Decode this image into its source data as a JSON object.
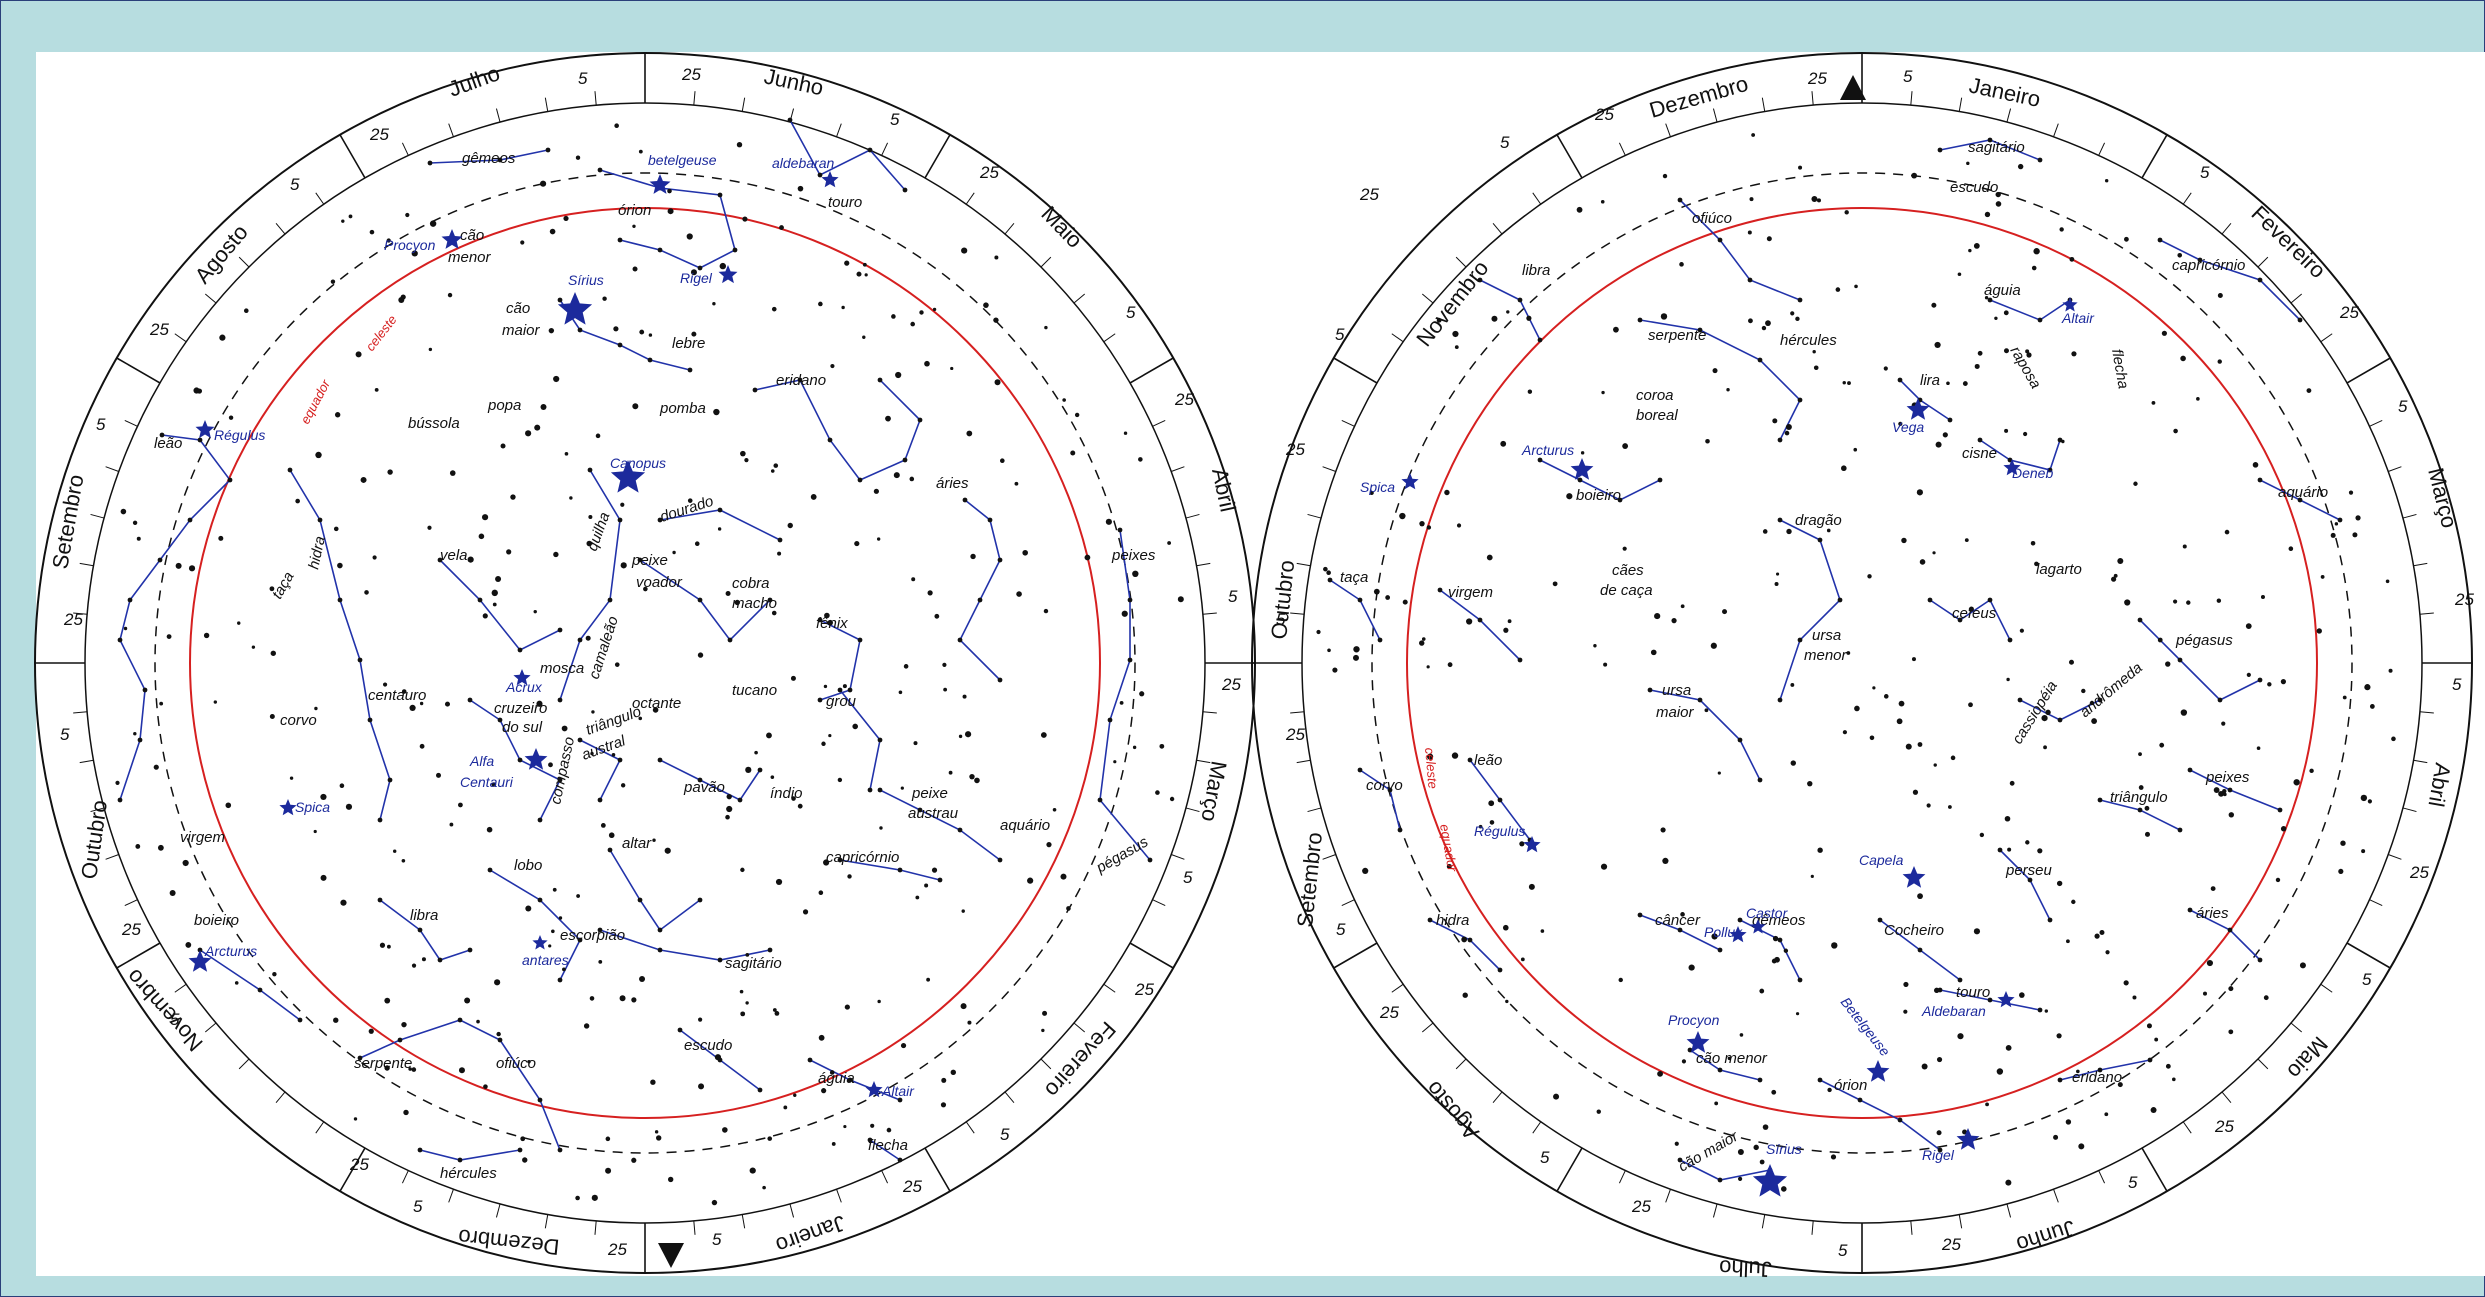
{
  "colors": {
    "background": "#b7dde0",
    "sheet": "#ffffff",
    "constellation_lines": "#2233aa",
    "star_names": "#1c2a9c",
    "celestial_equator": "#d62020",
    "stars": "#111111"
  },
  "south_map": {
    "months": [
      "Julho",
      "Junho",
      "Maio",
      "Abril",
      "Março",
      "Fevereiro",
      "Janeiro",
      "Dezembro",
      "Novembro",
      "Outubro",
      "Setembro",
      "Agosto"
    ],
    "ticks": [
      "5",
      "25"
    ],
    "equator_label": [
      "equador",
      "celeste"
    ],
    "constellations": [
      "gêmeos",
      "órion",
      "touro",
      "cão",
      "menor",
      "cão",
      "maior",
      "lebre",
      "eridano",
      "pomba",
      "popa",
      "bússola",
      "leão",
      "quilha",
      "dourado",
      "áries",
      "peixes",
      "vela",
      "peixe",
      "voador",
      "cobra",
      "macho",
      "hidra",
      "taça",
      "fênix",
      "mosca",
      "camaleão",
      "octante",
      "tucano",
      "grou",
      "centauro",
      "cruzeiro",
      "do sul",
      "triângulo",
      "austral",
      "corvo",
      "compasso",
      "pavão",
      "índio",
      "peixe",
      "austrau",
      "aquário",
      "pégasus",
      "virgem",
      "altar",
      "capricórnio",
      "lobo",
      "libra",
      "escorpião",
      "sagitário",
      "boieiro",
      "serpente",
      "ofiúco",
      "escudo",
      "águia",
      "hércules",
      "flecha"
    ],
    "stars": [
      "betelgeuse",
      "aldebaran",
      "Procyon",
      "Rigel",
      "Sírius",
      "Canopus",
      "Régulus",
      "Acrux",
      "Alfa",
      "Centauri",
      "Spica",
      "antares",
      "Arcturus",
      "Altair"
    ]
  },
  "north_map": {
    "months": [
      "Dezembro",
      "Janeiro",
      "Fevereiro",
      "Março",
      "Abril",
      "Maio",
      "Junho",
      "Julho",
      "Agosto",
      "Setembro",
      "Outubro",
      "Novembro"
    ],
    "ticks": [
      "5",
      "25"
    ],
    "equator_label": [
      "equador",
      "celeste"
    ],
    "constellations": [
      "sagitário",
      "escudo",
      "ofiúco",
      "libra",
      "águia",
      "capricórnio",
      "serpente",
      "hércules",
      "raposa",
      "flecha",
      "coroa",
      "boreal",
      "lira",
      "cisne",
      "aquário",
      "boieiro",
      "dragão",
      "taça",
      "cães",
      "de caça",
      "lagarto",
      "virgem",
      "ursa",
      "menor",
      "cefeus",
      "pégasus",
      "ursa",
      "maior",
      "cassiopéia",
      "andrômeda",
      "corvo",
      "leão",
      "peixes",
      "triângulo",
      "perseu",
      "hidra",
      "câncer",
      "gêmeos",
      "Cocheiro",
      "áries",
      "touro",
      "cão menor",
      "órion",
      "eridano",
      "cão maior"
    ],
    "stars": [
      "Altair",
      "Vega",
      "Deneb",
      "Arcturus",
      "Spica",
      "Régulus",
      "Capela",
      "Castor",
      "Pollux",
      "Aldebaran",
      "Procyon",
      "Betelgeuse",
      "Sírius",
      "Rigel"
    ]
  }
}
